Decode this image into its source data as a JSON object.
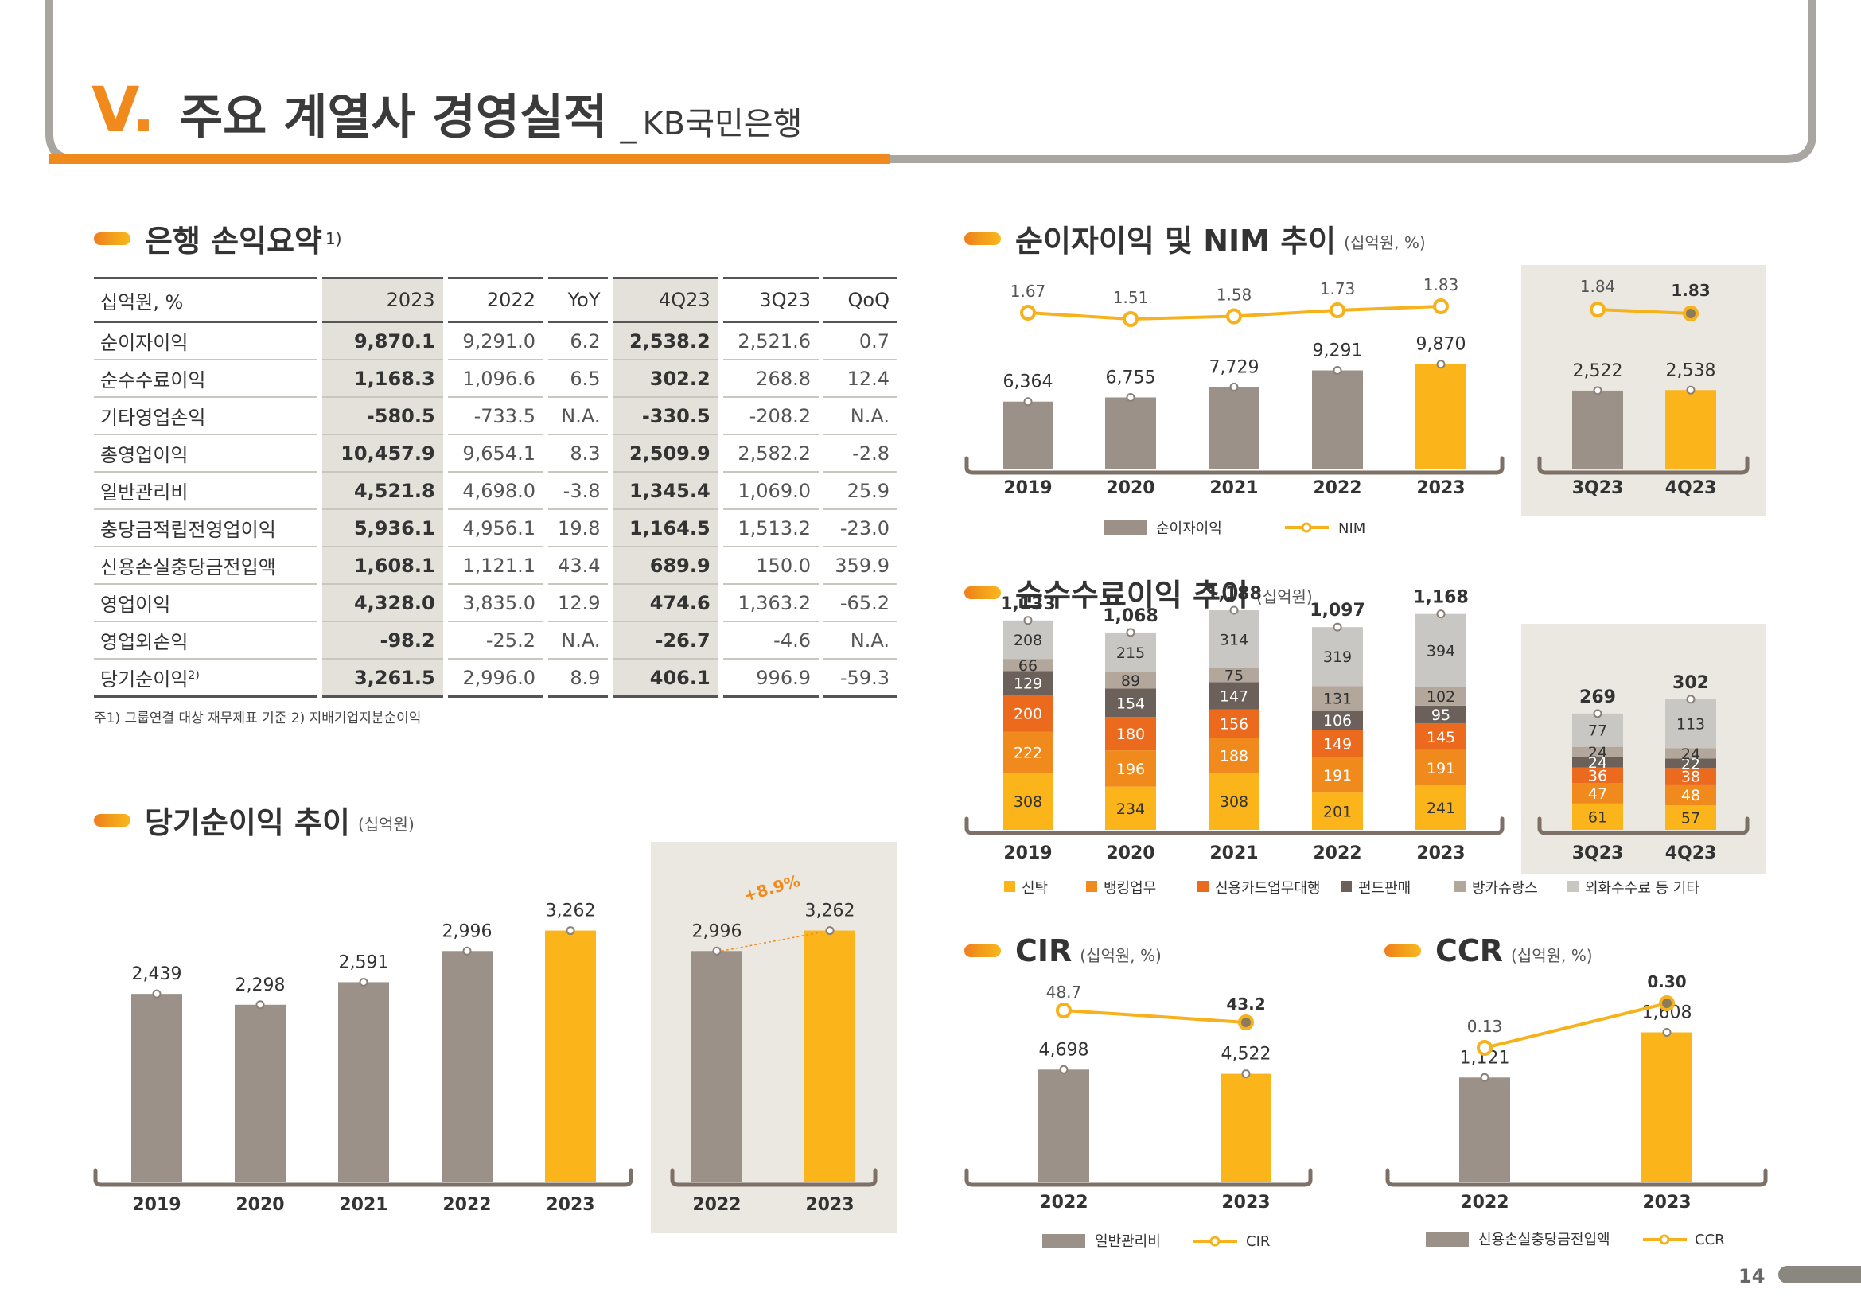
{
  "header": {
    "numeral": "V.",
    "title": "주요 계열사 경영실적",
    "separator": "_",
    "subtitle": "KB국민은행"
  },
  "colors": {
    "accent": "#f29b1b",
    "orange": "#f08a1c",
    "gray": "#9b9189",
    "yellow": "#fbb51a",
    "panel": "#ebe8e2"
  },
  "sections": {
    "summary": {
      "title": "은행 손익요약",
      "sup": "1)"
    },
    "netincome": {
      "title": "당기순이익 추이",
      "unit": "(십억원)"
    },
    "nii": {
      "title": "순이자이익 및 NIM 추이",
      "unit": "(십억원, %)"
    },
    "fee": {
      "title": "순수수료이익 추이",
      "unit": "(십억원)"
    },
    "cir": {
      "title": "CIR",
      "unit": "(십억원, %)"
    },
    "ccr": {
      "title": "CCR",
      "unit": "(십억원, %)"
    }
  },
  "table": {
    "headers": [
      "십억원, %",
      "2023",
      "2022",
      "YoY",
      "4Q23",
      "3Q23",
      "QoQ"
    ],
    "rows": [
      [
        "순이자이익",
        "9,870.1",
        "9,291.0",
        "6.2",
        "2,538.2",
        "2,521.6",
        "0.7"
      ],
      [
        "순수수료이익",
        "1,168.3",
        "1,096.6",
        "6.5",
        "302.2",
        "268.8",
        "12.4"
      ],
      [
        "기타영업손익",
        "-580.5",
        "-733.5",
        "N.A.",
        "-330.5",
        "-208.2",
        "N.A."
      ],
      [
        "총영업이익",
        "10,457.9",
        "9,654.1",
        "8.3",
        "2,509.9",
        "2,582.2",
        "-2.8"
      ],
      [
        "일반관리비",
        "4,521.8",
        "4,698.0",
        "-3.8",
        "1,345.4",
        "1,069.0",
        "25.9"
      ],
      [
        "충당금적립전영업이익",
        "5,936.1",
        "4,956.1",
        "19.8",
        "1,164.5",
        "1,513.2",
        "-23.0"
      ],
      [
        "신용손실충당금전입액",
        "1,608.1",
        "1,121.1",
        "43.4",
        "689.9",
        "150.0",
        "359.9"
      ],
      [
        "영업이익",
        "4,328.0",
        "3,835.0",
        "12.9",
        "474.6",
        "1,363.2",
        "-65.2"
      ],
      [
        "영업외손익",
        "-98.2",
        "-25.2",
        "N.A.",
        "-26.7",
        "-4.6",
        "N.A."
      ],
      [
        "당기순이익",
        "3,261.5",
        "2,996.0",
        "8.9",
        "406.1",
        "996.9",
        "-59.3"
      ]
    ],
    "last_row_sup": "2)",
    "note": "주1) 그룹연결 대상 재무제표 기준   2) 지배기업지분순이익"
  },
  "chart_data": [
    {
      "id": "netincome",
      "type": "bar",
      "categories": [
        "2019",
        "2020",
        "2021",
        "2022",
        "2023"
      ],
      "values": [
        2439,
        2298,
        2591,
        2996,
        3262
      ],
      "labels": [
        "2,439",
        "2,298",
        "2,591",
        "2,996",
        "3,262"
      ],
      "ylim": [
        0,
        3800
      ]
    },
    {
      "id": "netincome_yoy",
      "type": "bar",
      "categories": [
        "2022",
        "2023"
      ],
      "values": [
        2996,
        3262
      ],
      "labels": [
        "2,996",
        "3,262"
      ],
      "annotation": "+8.9%",
      "ylim": [
        0,
        3800
      ]
    },
    {
      "id": "nii",
      "type": "bar+line",
      "categories": [
        "2019",
        "2020",
        "2021",
        "2022",
        "2023"
      ],
      "series": [
        {
          "name": "순이자이익",
          "values": [
            6364,
            6755,
            7729,
            9291,
            9870
          ],
          "labels": [
            "6,364",
            "6,755",
            "7,729",
            "9,291",
            "9,870"
          ]
        },
        {
          "name": "NIM",
          "values": [
            1.67,
            1.51,
            1.58,
            1.73,
            1.83
          ],
          "labels": [
            "1.67",
            "1.51",
            "1.58",
            "1.73",
            "1.83"
          ]
        }
      ]
    },
    {
      "id": "nii_q",
      "type": "bar+line",
      "categories": [
        "3Q23",
        "4Q23"
      ],
      "series": [
        {
          "name": "순이자이익",
          "values": [
            2522,
            2538
          ],
          "labels": [
            "2,522",
            "2,538"
          ]
        },
        {
          "name": "NIM",
          "values": [
            1.84,
            1.83
          ],
          "labels": [
            "1.84",
            "1.83"
          ]
        }
      ]
    },
    {
      "id": "fee",
      "type": "stacked-bar",
      "categories": [
        "2019",
        "2020",
        "2021",
        "2022",
        "2023"
      ],
      "totals": [
        "1,133",
        "1,068",
        "1,188",
        "1,097",
        "1,168"
      ],
      "series": [
        {
          "name": "신탁",
          "values": [
            308,
            234,
            308,
            201,
            241
          ]
        },
        {
          "name": "뱅킹업무",
          "values": [
            222,
            196,
            188,
            191,
            191
          ]
        },
        {
          "name": "신용카드업무대행",
          "values": [
            200,
            180,
            156,
            149,
            145
          ]
        },
        {
          "name": "펀드판매",
          "values": [
            129,
            154,
            147,
            106,
            95
          ]
        },
        {
          "name": "방카슈랑스",
          "values": [
            66,
            89,
            75,
            131,
            102
          ]
        },
        {
          "name": "외화수수료 등 기타",
          "values": [
            208,
            215,
            314,
            319,
            394
          ]
        }
      ]
    },
    {
      "id": "fee_q",
      "type": "stacked-bar",
      "categories": [
        "3Q23",
        "4Q23"
      ],
      "totals": [
        "269",
        "302"
      ],
      "series": [
        {
          "name": "신탁",
          "values": [
            61,
            57
          ]
        },
        {
          "name": "뱅킹업무",
          "values": [
            47,
            48
          ]
        },
        {
          "name": "신용카드업무대행",
          "values": [
            36,
            38
          ]
        },
        {
          "name": "펀드판매",
          "values": [
            24,
            22
          ]
        },
        {
          "name": "방카슈랑스",
          "values": [
            24,
            24
          ]
        },
        {
          "name": "외화수수료 등 기타",
          "values": [
            77,
            113
          ]
        }
      ]
    },
    {
      "id": "cir",
      "type": "bar+line",
      "categories": [
        "2022",
        "2023"
      ],
      "series": [
        {
          "name": "일반관리비",
          "values": [
            4698,
            4522
          ],
          "labels": [
            "4,698",
            "4,522"
          ]
        },
        {
          "name": "CIR",
          "values": [
            48.7,
            43.2
          ],
          "labels": [
            "48.7",
            "43.2"
          ]
        }
      ]
    },
    {
      "id": "ccr",
      "type": "bar+line",
      "categories": [
        "2022",
        "2023"
      ],
      "series": [
        {
          "name": "신용손실충당금전입액",
          "values": [
            1121,
            1608
          ],
          "labels": [
            "1,121",
            "1,608"
          ]
        },
        {
          "name": "CCR",
          "values": [
            0.13,
            0.3
          ],
          "labels": [
            "0.13",
            "0.30"
          ]
        }
      ]
    }
  ],
  "page_number": "14"
}
